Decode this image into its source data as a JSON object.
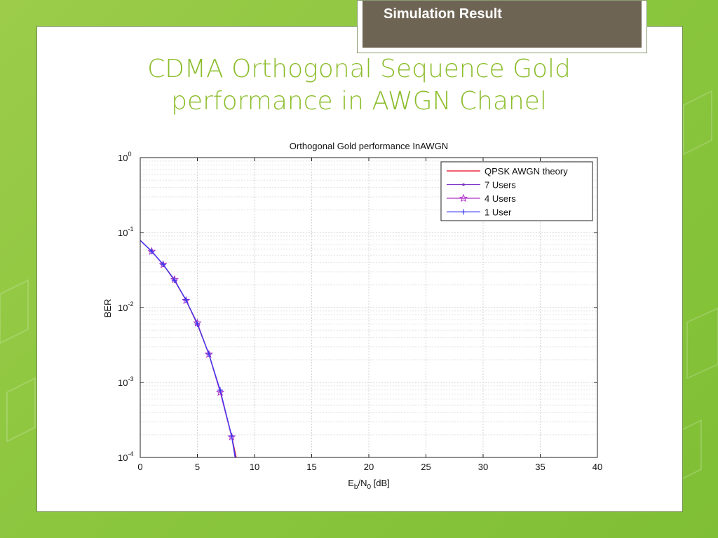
{
  "header": {
    "tag_label": "Simulation Result"
  },
  "slide": {
    "title_line1": "CDMA Orthogonal Sequence  Gold",
    "title_line2": "performance in AWGN Chanel"
  },
  "colors": {
    "accent_green": "#8cbd2c",
    "tag_bg": "#6e6454",
    "series_theory": "#e8001c",
    "series_7users": "#7a32c8",
    "series_4users": "#b030c8",
    "series_1user": "#3a3af0"
  },
  "chart_data": {
    "type": "line",
    "title": "Orthogonal Gold performance InAWGN",
    "xlabel": "Eb/N0 [dB]",
    "ylabel": "BER",
    "xlim": [
      0,
      40
    ],
    "ylim": [
      0.0001,
      1
    ],
    "yscale": "log",
    "grid": true,
    "legend_position": "top-right",
    "x_ticks": [
      "0",
      "5",
      "10",
      "15",
      "20",
      "25",
      "30",
      "35",
      "40"
    ],
    "y_ticks": [
      {
        "base": "10",
        "exp": "0"
      },
      {
        "base": "10",
        "exp": "-1"
      },
      {
        "base": "10",
        "exp": "-2"
      },
      {
        "base": "10",
        "exp": "-3"
      },
      {
        "base": "10",
        "exp": "-4"
      }
    ],
    "series": [
      {
        "name": "QPSK AWGN theory",
        "color": "#e8001c",
        "marker": "none",
        "x": [
          0,
          1,
          2,
          3,
          4,
          5,
          6,
          7,
          8,
          8.4
        ],
        "y": [
          0.0786,
          0.0563,
          0.0375,
          0.0229,
          0.0125,
          0.00595,
          0.00239,
          0.000773,
          0.000191,
          0.0001
        ]
      },
      {
        "name": "7 Users",
        "color": "#7a32c8",
        "marker": "dot",
        "x": [
          0,
          1,
          2,
          3,
          4,
          5,
          6,
          7,
          8,
          8.35
        ],
        "y": [
          0.0788,
          0.0565,
          0.0376,
          0.0232,
          0.0126,
          0.0061,
          0.00242,
          0.00076,
          0.000192,
          0.0001
        ]
      },
      {
        "name": "4 Users",
        "color": "#b030c8",
        "marker": "star",
        "x": [
          0,
          1,
          2,
          3,
          4,
          5,
          6,
          7,
          8,
          8.3
        ],
        "y": [
          0.0784,
          0.0561,
          0.0374,
          0.0236,
          0.0124,
          0.0062,
          0.00238,
          0.00074,
          0.000188,
          0.0001
        ]
      },
      {
        "name": "1 User",
        "color": "#3a3af0",
        "marker": "plus",
        "x": [
          0,
          1,
          2,
          3,
          4,
          5,
          6,
          7,
          8,
          8.3
        ],
        "y": [
          0.0787,
          0.0562,
          0.0378,
          0.0231,
          0.0127,
          0.006,
          0.0024,
          0.00079,
          0.000193,
          0.0001
        ]
      }
    ]
  }
}
